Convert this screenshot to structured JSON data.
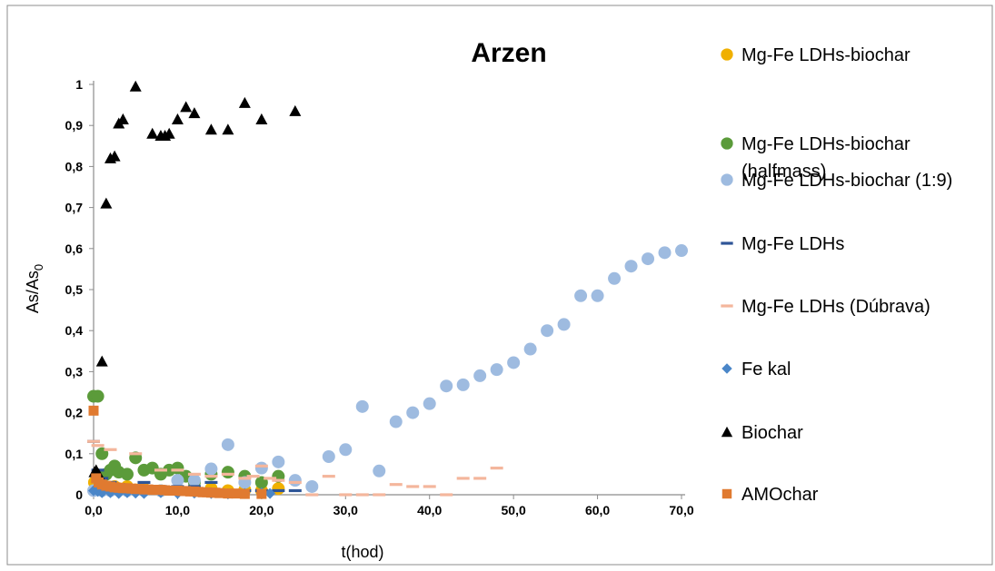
{
  "chart_data": {
    "type": "scatter",
    "title": "Arzen",
    "xlabel": "t(hod)",
    "ylabel_main": "As/As",
    "ylabel_sub": "0",
    "xlim": [
      0,
      70
    ],
    "ylim": [
      0,
      1
    ],
    "x_ticks": [
      "0,0",
      "10,0",
      "20,0",
      "30,0",
      "40,0",
      "50,0",
      "60,0",
      "70,0"
    ],
    "y_ticks": [
      "0",
      "0,1",
      "0,2",
      "0,3",
      "0,4",
      "0,5",
      "0,6",
      "0,7",
      "0,8",
      "0,9",
      "1"
    ],
    "grid": false,
    "legend_position": "right",
    "series": [
      {
        "name": "Mg-Fe LDHs-biochar",
        "marker": "circle",
        "color": "#f0b000",
        "points": [
          [
            0.1,
            0.03
          ],
          [
            0.3,
            0.025
          ],
          [
            0.6,
            0.02
          ],
          [
            1,
            0.018
          ],
          [
            1.5,
            0.02
          ],
          [
            2,
            0.015
          ],
          [
            2.5,
            0.02
          ],
          [
            3,
            0.015
          ],
          [
            4,
            0.02
          ],
          [
            5,
            0.012
          ],
          [
            6,
            0.015
          ],
          [
            8,
            0.01
          ],
          [
            10,
            0.012
          ],
          [
            12,
            0.01
          ],
          [
            14,
            0.015
          ],
          [
            16,
            0.01
          ],
          [
            18,
            0.012
          ],
          [
            20,
            0.01
          ],
          [
            22,
            0.015
          ]
        ]
      },
      {
        "name": "Mg-Fe LDHs-biochar\n(halfmass)",
        "legend_lines": [
          "Mg-Fe LDHs-biochar",
          "(halfmass)"
        ],
        "marker": "circle",
        "color": "#5b9b3a",
        "points": [
          [
            0,
            0.24
          ],
          [
            0.5,
            0.24
          ],
          [
            1,
            0.1
          ],
          [
            1.5,
            0.05
          ],
          [
            2,
            0.06
          ],
          [
            2.5,
            0.07
          ],
          [
            3,
            0.055
          ],
          [
            4,
            0.05
          ],
          [
            5,
            0.09
          ],
          [
            6,
            0.06
          ],
          [
            7,
            0.065
          ],
          [
            8,
            0.05
          ],
          [
            9,
            0.06
          ],
          [
            10,
            0.065
          ],
          [
            11,
            0.045
          ],
          [
            12,
            0.03
          ],
          [
            14,
            0.05
          ],
          [
            16,
            0.055
          ],
          [
            18,
            0.045
          ],
          [
            20,
            0.03
          ],
          [
            22,
            0.045
          ]
        ]
      },
      {
        "name": "Mg-Fe LDHs-biochar (1:9)",
        "marker": "circle",
        "color": "#9ebbe0",
        "points": [
          [
            0,
            0.01
          ],
          [
            1,
            0.01
          ],
          [
            2,
            0.01
          ],
          [
            4,
            0.01
          ],
          [
            6,
            0.01
          ],
          [
            8,
            0.01
          ],
          [
            10,
            0.035
          ],
          [
            12,
            0.035
          ],
          [
            14,
            0.063
          ],
          [
            16,
            0.122
          ],
          [
            18,
            0.03
          ],
          [
            20,
            0.065
          ],
          [
            22,
            0.08
          ],
          [
            24,
            0.035
          ],
          [
            26,
            0.02
          ],
          [
            28,
            0.093
          ],
          [
            30,
            0.11
          ],
          [
            32,
            0.215
          ],
          [
            34,
            0.058
          ],
          [
            36,
            0.178
          ],
          [
            38,
            0.2
          ],
          [
            40,
            0.222
          ],
          [
            42,
            0.265
          ],
          [
            44,
            0.268
          ],
          [
            46,
            0.29
          ],
          [
            48,
            0.305
          ],
          [
            50,
            0.322
          ],
          [
            52,
            0.355
          ],
          [
            54,
            0.4
          ],
          [
            56,
            0.415
          ],
          [
            58,
            0.485
          ],
          [
            60,
            0.485
          ],
          [
            62,
            0.527
          ],
          [
            64,
            0.557
          ],
          [
            66,
            0.575
          ],
          [
            68,
            0.59
          ],
          [
            70,
            0.595
          ]
        ]
      },
      {
        "name": "Mg-Fe LDHs",
        "marker": "dash",
        "color": "#2e5597",
        "points": [
          [
            0,
            0.13
          ],
          [
            0.5,
            0.06
          ],
          [
            1,
            0.04
          ],
          [
            2,
            0.03
          ],
          [
            3,
            0.025
          ],
          [
            4,
            0.02
          ],
          [
            6,
            0.03
          ],
          [
            8,
            0.02
          ],
          [
            10,
            0.02
          ],
          [
            12,
            0.02
          ],
          [
            14,
            0.03
          ],
          [
            16,
            0.01
          ],
          [
            18,
            0.01
          ],
          [
            20,
            0.01
          ],
          [
            22,
            0.01
          ],
          [
            24,
            0.01
          ]
        ]
      },
      {
        "name": "Mg-Fe LDHs (Dúbrava)",
        "marker": "dash",
        "color": "#f4b69c",
        "points": [
          [
            0,
            0.13
          ],
          [
            0.5,
            0.12
          ],
          [
            2,
            0.11
          ],
          [
            5,
            0.1
          ],
          [
            8,
            0.06
          ],
          [
            10,
            0.06
          ],
          [
            12,
            0.05
          ],
          [
            14,
            0.045
          ],
          [
            16,
            0.05
          ],
          [
            18,
            0.04
          ],
          [
            19,
            0.045
          ],
          [
            20,
            0.07
          ],
          [
            21,
            0.04
          ],
          [
            22,
            0.035
          ],
          [
            24,
            0.03
          ],
          [
            26,
            0.0
          ],
          [
            28,
            0.045
          ],
          [
            30,
            0.0
          ],
          [
            32,
            0.0
          ],
          [
            34,
            0.0
          ],
          [
            36,
            0.025
          ],
          [
            38,
            0.02
          ],
          [
            40,
            0.02
          ],
          [
            42,
            0.0
          ],
          [
            44,
            0.04
          ],
          [
            46,
            0.04
          ],
          [
            48,
            0.065
          ]
        ]
      },
      {
        "name": "Fe kal",
        "marker": "diamond",
        "color": "#4a86c8",
        "points": [
          [
            0,
            0.01
          ],
          [
            0.5,
            0.008
          ],
          [
            1,
            0.005
          ],
          [
            2,
            0.005
          ],
          [
            3,
            0.003
          ],
          [
            4,
            0.005
          ],
          [
            5,
            0.004
          ],
          [
            6,
            0.003
          ],
          [
            8,
            0.005
          ],
          [
            10,
            0.003
          ],
          [
            12,
            0.004
          ],
          [
            14,
            0.003
          ],
          [
            16,
            0.002
          ],
          [
            18,
            0.003
          ],
          [
            20,
            0.005
          ],
          [
            21,
            0.003
          ]
        ]
      },
      {
        "name": "Biochar",
        "marker": "triangle",
        "color": "#000000",
        "points": [
          [
            0.1,
            0.055
          ],
          [
            0.3,
            0.06
          ],
          [
            0.6,
            0.05
          ],
          [
            1,
            0.325
          ],
          [
            1.5,
            0.71
          ],
          [
            2,
            0.82
          ],
          [
            2.5,
            0.825
          ],
          [
            3,
            0.905
          ],
          [
            3.5,
            0.915
          ],
          [
            5,
            0.995
          ],
          [
            7,
            0.88
          ],
          [
            8,
            0.875
          ],
          [
            8.5,
            0.875
          ],
          [
            9,
            0.88
          ],
          [
            10,
            0.915
          ],
          [
            11,
            0.945
          ],
          [
            12,
            0.93
          ],
          [
            14,
            0.89
          ],
          [
            16,
            0.89
          ],
          [
            18,
            0.955
          ],
          [
            20,
            0.915
          ],
          [
            24,
            0.935
          ]
        ]
      },
      {
        "name": "AMOchar",
        "marker": "square",
        "color": "#e07a30",
        "points": [
          [
            0,
            0.205
          ],
          [
            0.3,
            0.04
          ],
          [
            0.6,
            0.03
          ],
          [
            1,
            0.025
          ],
          [
            1.5,
            0.022
          ],
          [
            2,
            0.02
          ],
          [
            2.5,
            0.018
          ],
          [
            3,
            0.017
          ],
          [
            3.5,
            0.016
          ],
          [
            4,
            0.016
          ],
          [
            4.5,
            0.015
          ],
          [
            5,
            0.014
          ],
          [
            5.5,
            0.014
          ],
          [
            6,
            0.013
          ],
          [
            6.5,
            0.013
          ],
          [
            7,
            0.012
          ],
          [
            7.5,
            0.012
          ],
          [
            8,
            0.012
          ],
          [
            8.5,
            0.011
          ],
          [
            9,
            0.01
          ],
          [
            9.5,
            0.01
          ],
          [
            10,
            0.01
          ],
          [
            10.5,
            0.009
          ],
          [
            11,
            0.009
          ],
          [
            11.5,
            0.008
          ],
          [
            12,
            0.008
          ],
          [
            12.5,
            0.007
          ],
          [
            13,
            0.006
          ],
          [
            13.5,
            0.006
          ],
          [
            14,
            0.005
          ],
          [
            14.5,
            0.005
          ],
          [
            15,
            0.004
          ],
          [
            16,
            0.003
          ],
          [
            17,
            0.003
          ],
          [
            18,
            0.002
          ],
          [
            20,
            0.002
          ]
        ]
      }
    ]
  }
}
